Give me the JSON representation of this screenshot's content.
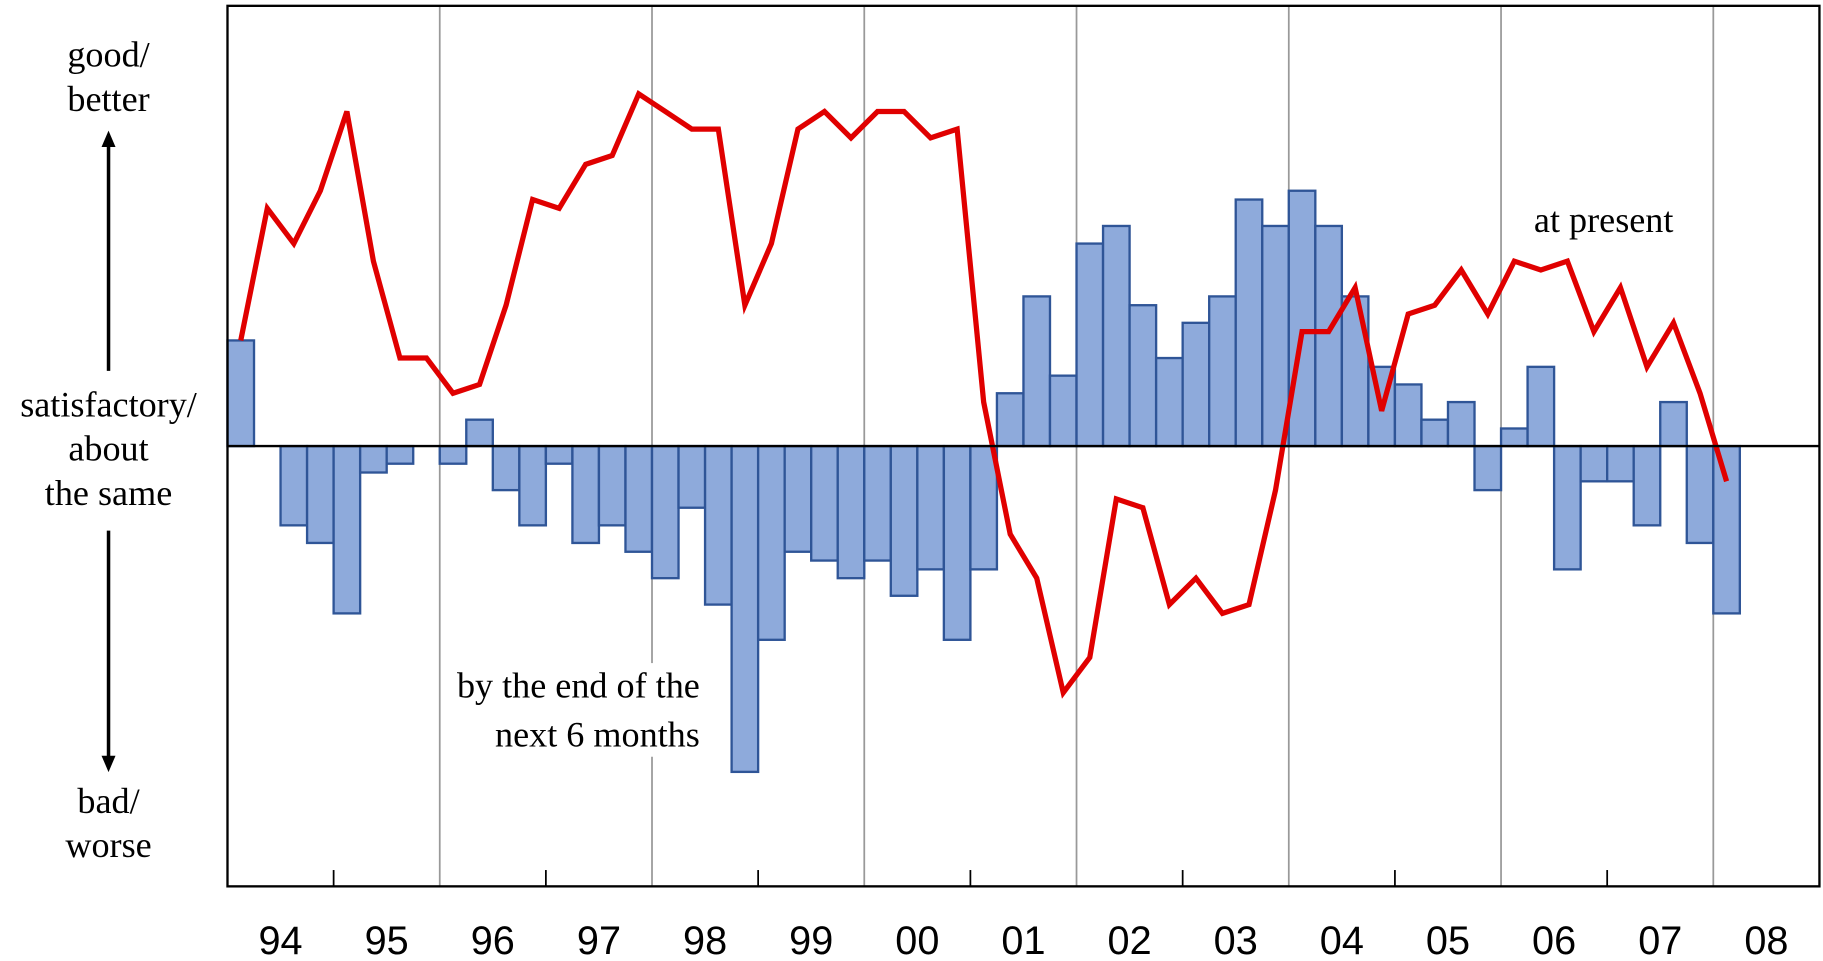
{
  "chart_data": {
    "type": "bar_line",
    "x": [
      0,
      1,
      2,
      3,
      4,
      5,
      6,
      7,
      8,
      9,
      10,
      11,
      12,
      13,
      14,
      15,
      16,
      17,
      18,
      19,
      20,
      21,
      22,
      23,
      24,
      25,
      26,
      27,
      28,
      29,
      30,
      31,
      32,
      33,
      34,
      35,
      36,
      37,
      38,
      39,
      40,
      41,
      42,
      43,
      44,
      45,
      46,
      47,
      48,
      49,
      50,
      51,
      52,
      53,
      54,
      55,
      56
    ],
    "series": [
      {
        "name": [
          "by the end of the",
          "next 6 months"
        ],
        "type": "bar",
        "color": "#8eaadb",
        "edge_color": "#2f5597",
        "values": [
          24,
          0,
          -18,
          -22,
          -38,
          -6,
          -4,
          0,
          -4,
          6,
          -10,
          -18,
          -4,
          -22,
          -18,
          -24,
          -30,
          -14,
          -36,
          -74,
          -44,
          -24,
          -26,
          -30,
          -26,
          -34,
          -28,
          -44,
          -28,
          12,
          34,
          16,
          46,
          50,
          32,
          20,
          28,
          34,
          56,
          50,
          58,
          50,
          34,
          18,
          14,
          6,
          10,
          -10,
          4,
          18,
          -28,
          -8,
          -8,
          -18,
          10,
          -22,
          -38
        ]
      },
      {
        "name": [
          "at present"
        ],
        "type": "line",
        "color": "#e00000",
        "values": [
          24,
          54,
          46,
          58,
          76,
          42,
          20,
          20,
          12,
          14,
          32,
          56,
          54,
          64,
          66,
          80,
          76,
          72,
          72,
          32,
          46,
          72,
          76,
          70,
          76,
          76,
          70,
          72,
          10,
          -20,
          -30,
          -56,
          -48,
          -12,
          -14,
          -36,
          -30,
          -38,
          -36,
          -10,
          26,
          26,
          36,
          8,
          30,
          32,
          40,
          30,
          42,
          40,
          42,
          26,
          36,
          18,
          28,
          12,
          -8
        ]
      }
    ],
    "xlim": [
      -0.5,
      59.5
    ],
    "ylim": [
      -100,
      100
    ],
    "xticks": [
      {
        "value": 1.5,
        "label": "94"
      },
      {
        "value": 5.5,
        "label": "95"
      },
      {
        "value": 9.5,
        "label": "96"
      },
      {
        "value": 13.5,
        "label": "97"
      },
      {
        "value": 17.5,
        "label": "98"
      },
      {
        "value": 21.5,
        "label": "99"
      },
      {
        "value": 25.5,
        "label": "00"
      },
      {
        "value": 29.5,
        "label": "01"
      },
      {
        "value": 33.5,
        "label": "02"
      },
      {
        "value": 37.5,
        "label": "03"
      },
      {
        "value": 41.5,
        "label": "04"
      },
      {
        "value": 45.5,
        "label": "05"
      },
      {
        "value": 49.5,
        "label": "06"
      },
      {
        "value": 53.5,
        "label": "07"
      },
      {
        "value": 57.5,
        "label": "08"
      }
    ],
    "x_minor_ticks": [
      3.5,
      11.5,
      19.5,
      27.5,
      35.5,
      43.5,
      51.5
    ],
    "x_gridlines": [
      7.5,
      15.5,
      23.5,
      31.5,
      39.5,
      47.5,
      55.5
    ],
    "y_labels": {
      "top": [
        "good/",
        "better"
      ],
      "middle": [
        "satisfactory/",
        "about",
        "the same"
      ],
      "bottom": [
        "bad/",
        "worse"
      ]
    }
  }
}
